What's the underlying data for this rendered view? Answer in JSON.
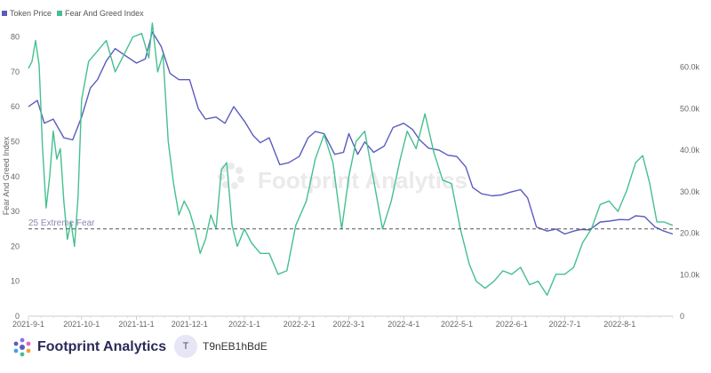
{
  "legend": {
    "token_price": "Token Price",
    "fear_greed": "Fear And Greed Index"
  },
  "colors": {
    "token_price": "#5b5bbf",
    "fear_greed": "#45c08f",
    "threshold": "#555555",
    "watermark": "#d8d8d8"
  },
  "chart_data": {
    "type": "line",
    "ylabel_left": "Fear And Greed Index",
    "y_left_ticks": [
      "0",
      "10",
      "20",
      "30",
      "40",
      "50",
      "60",
      "70",
      "80"
    ],
    "y_right_ticks": [
      "0",
      "10.0k",
      "20.0k",
      "30.0k",
      "40.0k",
      "50.0k",
      "60.0k"
    ],
    "x_ticks": [
      "2021-9-1",
      "2021-10-1",
      "2021-11-1",
      "2021-12-1",
      "2022-1-1",
      "2022-2-1",
      "2022-3-1",
      "2022-4-1",
      "2022-5-1",
      "2022-6-1",
      "2022-7-1",
      "2022-8-1"
    ],
    "ylim_left": [
      0,
      85
    ],
    "ylim_right": [
      0,
      71500
    ],
    "threshold": {
      "value": 25,
      "label": "25 Extreme Fear"
    },
    "watermark": "Footprint Analytics",
    "series": [
      {
        "name": "Token Price",
        "axis": "right",
        "x": [
          "2021-09-01",
          "2021-09-06",
          "2021-09-10",
          "2021-09-15",
          "2021-09-21",
          "2021-09-26",
          "2021-10-01",
          "2021-10-06",
          "2021-10-10",
          "2021-10-15",
          "2021-10-20",
          "2021-10-25",
          "2021-11-01",
          "2021-11-06",
          "2021-11-10",
          "2021-11-15",
          "2021-11-20",
          "2021-11-25",
          "2021-12-01",
          "2021-12-06",
          "2021-12-10",
          "2021-12-16",
          "2021-12-21",
          "2021-12-26",
          "2022-01-01",
          "2022-01-06",
          "2022-01-10",
          "2022-01-15",
          "2022-01-21",
          "2022-01-26",
          "2022-02-01",
          "2022-02-06",
          "2022-02-10",
          "2022-02-15",
          "2022-02-21",
          "2022-02-26",
          "2022-03-01",
          "2022-03-06",
          "2022-03-10",
          "2022-03-15",
          "2022-03-21",
          "2022-03-26",
          "2022-04-01",
          "2022-04-06",
          "2022-04-10",
          "2022-04-15",
          "2022-04-21",
          "2022-04-26",
          "2022-05-01",
          "2022-05-06",
          "2022-05-10",
          "2022-05-15",
          "2022-05-21",
          "2022-05-26",
          "2022-06-01",
          "2022-06-06",
          "2022-06-10",
          "2022-06-15",
          "2022-06-21",
          "2022-06-26",
          "2022-07-01",
          "2022-07-06",
          "2022-07-10",
          "2022-07-15",
          "2022-07-21",
          "2022-07-26",
          "2022-08-01",
          "2022-08-06",
          "2022-08-10",
          "2022-08-15",
          "2022-08-21",
          "2022-08-26",
          "2022-08-31"
        ],
        "values": [
          50500,
          52000,
          46500,
          47500,
          43000,
          42500,
          48000,
          55000,
          57000,
          61500,
          64500,
          63000,
          61000,
          62000,
          68500,
          65000,
          58500,
          57000,
          57000,
          50000,
          47500,
          48000,
          46500,
          50500,
          47000,
          43500,
          41800,
          43000,
          36500,
          37000,
          38500,
          43000,
          44500,
          44000,
          39000,
          39500,
          44000,
          39000,
          42000,
          39500,
          41000,
          45500,
          46500,
          45000,
          42500,
          40500,
          40000,
          38800,
          38500,
          36000,
          31000,
          29500,
          29000,
          29200,
          30000,
          30500,
          28500,
          21500,
          20500,
          21000,
          19800,
          20500,
          20900,
          20800,
          22700,
          22900,
          23300,
          23200,
          24200,
          24000,
          21500,
          20500,
          19800
        ]
      },
      {
        "name": "Fear And Greed Index",
        "axis": "left",
        "x": [
          "2021-09-01",
          "2021-09-03",
          "2021-09-05",
          "2021-09-07",
          "2021-09-09",
          "2021-09-11",
          "2021-09-13",
          "2021-09-15",
          "2021-09-17",
          "2021-09-19",
          "2021-09-21",
          "2021-09-23",
          "2021-09-25",
          "2021-09-27",
          "2021-09-29",
          "2021-10-01",
          "2021-10-05",
          "2021-10-10",
          "2021-10-15",
          "2021-10-20",
          "2021-10-25",
          "2021-10-30",
          "2021-11-04",
          "2021-11-08",
          "2021-11-10",
          "2021-11-13",
          "2021-11-16",
          "2021-11-19",
          "2021-11-22",
          "2021-11-25",
          "2021-11-28",
          "2021-12-01",
          "2021-12-04",
          "2021-12-07",
          "2021-12-10",
          "2021-12-13",
          "2021-12-16",
          "2021-12-19",
          "2021-12-22",
          "2021-12-25",
          "2021-12-28",
          "2022-01-01",
          "2022-01-05",
          "2022-01-10",
          "2022-01-15",
          "2022-01-20",
          "2022-01-25",
          "2022-01-30",
          "2022-02-05",
          "2022-02-10",
          "2022-02-15",
          "2022-02-20",
          "2022-02-25",
          "2022-03-01",
          "2022-03-05",
          "2022-03-10",
          "2022-03-15",
          "2022-03-20",
          "2022-03-25",
          "2022-03-30",
          "2022-04-03",
          "2022-04-08",
          "2022-04-13",
          "2022-04-18",
          "2022-04-23",
          "2022-04-28",
          "2022-05-03",
          "2022-05-08",
          "2022-05-12",
          "2022-05-17",
          "2022-05-22",
          "2022-05-27",
          "2022-06-01",
          "2022-06-06",
          "2022-06-11",
          "2022-06-16",
          "2022-06-21",
          "2022-06-26",
          "2022-07-01",
          "2022-07-06",
          "2022-07-11",
          "2022-07-16",
          "2022-07-21",
          "2022-07-26",
          "2022-07-31",
          "2022-08-05",
          "2022-08-10",
          "2022-08-14",
          "2022-08-18",
          "2022-08-22",
          "2022-08-26",
          "2022-08-31"
        ],
        "values": [
          71,
          73,
          79,
          72,
          48,
          31,
          40,
          53,
          45,
          48,
          33,
          22,
          27,
          20,
          34,
          62,
          73,
          76,
          79,
          70,
          75,
          80,
          81,
          74,
          84,
          70,
          75,
          50,
          38,
          29,
          33,
          30,
          25,
          18,
          22,
          29,
          25,
          42,
          44,
          26,
          20,
          25,
          21,
          18,
          18,
          12,
          13,
          26,
          33,
          45,
          52,
          44,
          25,
          40,
          50,
          53,
          39,
          25,
          33,
          45,
          53,
          48,
          58,
          47,
          39,
          38,
          25,
          15,
          10,
          8,
          10,
          13,
          12,
          14,
          9,
          10,
          6,
          12,
          12,
          14,
          21,
          25,
          32,
          33,
          30,
          36,
          44,
          46,
          38,
          27,
          27,
          26
        ]
      }
    ]
  },
  "footer": {
    "brand_name": "Footprint Analytics",
    "avatar_letter": "T",
    "user_id": "T9nEB1hBdE"
  }
}
